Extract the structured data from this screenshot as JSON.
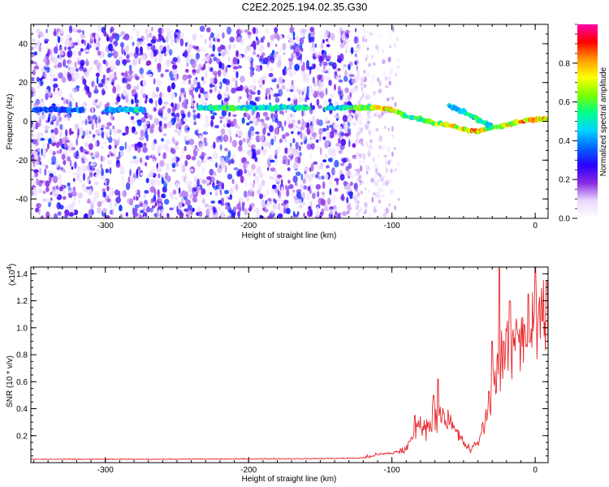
{
  "title": "C2E2.2025.194.02.35.G30",
  "chart_data": [
    {
      "type": "heatmap",
      "title": "C2E2.2025.194.02.35.G30",
      "xlabel": "Height of straight line (km)",
      "ylabel": "Frequency (Hz)",
      "xlim": [
        -352,
        9
      ],
      "ylim": [
        -50,
        50
      ],
      "xticks": [
        -300,
        -200,
        -100,
        0
      ],
      "yticks": [
        -40,
        -20,
        0,
        20,
        40
      ],
      "colorbar": {
        "label": "Normalized spectral amplitude",
        "range": [
          0.0,
          1.0
        ],
        "ticks": [
          0.0,
          0.2,
          0.4,
          0.6,
          0.8
        ],
        "colors": [
          "#ffffff",
          "#ead9ff",
          "#8a2be2",
          "#2a00ff",
          "#0066ff",
          "#00d5ff",
          "#00ff88",
          "#7cff00",
          "#ffff00",
          "#ff9900",
          "#ff0000",
          "#ff00aa"
        ]
      },
      "noise_region": {
        "x_range": [
          -352,
          -125
        ],
        "y_range": [
          -50,
          48
        ]
      },
      "fading_region": {
        "x_range": [
          -125,
          -95
        ],
        "y_range": [
          -50,
          48
        ]
      },
      "signal_track": {
        "x": [
          -350,
          -300,
          -270,
          -220,
          -160,
          -140,
          -120,
          -110,
          -100,
          -90,
          -80,
          -70,
          -60,
          -50,
          -40,
          -30,
          -20,
          -10,
          0,
          9
        ],
        "frequency": [
          6,
          6,
          6,
          7,
          7,
          7,
          7,
          7,
          6,
          3,
          1,
          -1,
          -2,
          -4,
          -5,
          -3,
          -2,
          0,
          1,
          1
        ],
        "amplitude": [
          0.35,
          0.4,
          0.55,
          0.55,
          0.5,
          0.5,
          0.6,
          0.75,
          0.8,
          0.6,
          0.55,
          0.65,
          0.7,
          0.75,
          0.8,
          0.65,
          0.7,
          0.85,
          0.9,
          0.8
        ]
      },
      "secondary_track": {
        "x": [
          -60,
          -50,
          -40,
          -30
        ],
        "frequency": [
          8,
          5,
          1,
          -3
        ],
        "amplitude": [
          0.45,
          0.5,
          0.55,
          0.5
        ]
      }
    },
    {
      "type": "line",
      "xlabel": "Height of straight line (km)",
      "ylabel": "SNR (10 * v/v)",
      "y_multiplier": "(x10",
      "y_multiplier_exponent": "4",
      "xlim": [
        -352,
        9
      ],
      "ylim": [
        0,
        14500
      ],
      "xticks": [
        -300,
        -200,
        -100,
        0
      ],
      "yticks": [
        2000,
        4000,
        6000,
        8000,
        10000,
        12000,
        14000
      ],
      "ytick_labels": [
        "0.2",
        "0.4",
        "0.6",
        "0.8",
        "1.0",
        "1.2",
        "1.4"
      ],
      "series": [
        {
          "color": "#e8282c",
          "x": [
            -352,
            -300,
            -250,
            -200,
            -150,
            -120,
            -110,
            -100,
            -90,
            -85,
            -80,
            -75,
            -70,
            -65,
            -60,
            -55,
            -50,
            -45,
            -40,
            -35,
            -30,
            -25,
            -20,
            -15,
            -10,
            -5,
            0,
            5,
            9
          ],
          "y": [
            250,
            250,
            260,
            280,
            300,
            350,
            600,
            700,
            1000,
            2000,
            3000,
            2500,
            3500,
            3800,
            3000,
            2200,
            1500,
            900,
            1500,
            3000,
            5500,
            7500,
            8500,
            9000,
            9500,
            10000,
            10500,
            11000,
            9500
          ],
          "peaks": {
            "x": [
              -84,
              -71,
              -68,
              -30,
              -25,
              -18,
              -12,
              -5,
              0,
              5,
              8
            ],
            "y": [
              3500,
              5000,
              6200,
              9000,
              14500,
              12000,
              9500,
              12500,
              14500,
              10500,
              13500
            ]
          }
        }
      ]
    }
  ]
}
